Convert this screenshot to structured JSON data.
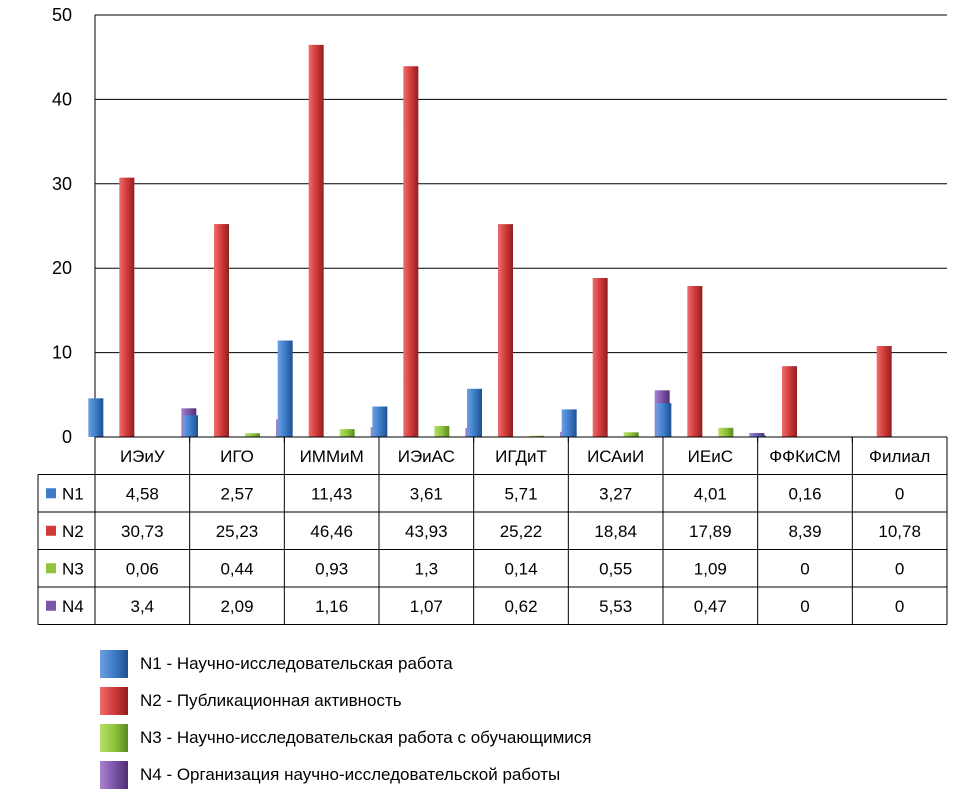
{
  "chart_data": {
    "type": "bar",
    "categories": [
      "ИЭиУ",
      "ИГО",
      "ИММиМ",
      "ИЭиАС",
      "ИГДиТ",
      "ИСАиИ",
      "ИЕиС",
      "ФФКиСМ",
      "Филиал"
    ],
    "series": [
      {
        "name": "N1",
        "color": "#3d7cc9",
        "values": [
          4.58,
          2.57,
          11.43,
          3.61,
          5.71,
          3.27,
          4.01,
          0.16,
          0
        ],
        "labels": [
          "4,58",
          "2,57",
          "11,43",
          "3,61",
          "5,71",
          "3,27",
          "4,01",
          "0,16",
          "0"
        ]
      },
      {
        "name": "N2",
        "color": "#d23a3a",
        "values": [
          30.73,
          25.23,
          46.46,
          43.93,
          25.22,
          18.84,
          17.89,
          8.39,
          10.78
        ],
        "labels": [
          "30,73",
          "25,23",
          "46,46",
          "43,93",
          "25,22",
          "18,84",
          "17,89",
          "8,39",
          "10,78"
        ]
      },
      {
        "name": "N3",
        "color": "#8fc43c",
        "values": [
          0.06,
          0.44,
          0.93,
          1.3,
          0.14,
          0.55,
          1.09,
          0,
          0
        ],
        "labels": [
          "0,06",
          "0,44",
          "0,93",
          "1,3",
          "0,14",
          "0,55",
          "1,09",
          "0",
          "0"
        ]
      },
      {
        "name": "N4",
        "color": "#7d55a8",
        "values": [
          3.4,
          2.09,
          1.16,
          1.07,
          0.62,
          5.53,
          0.47,
          0,
          0
        ],
        "labels": [
          "3,4",
          "2,09",
          "1,16",
          "1,07",
          "0,62",
          "5,53",
          "0,47",
          "0",
          "0"
        ]
      }
    ],
    "yticks": [
      "0",
      "10",
      "20",
      "30",
      "40",
      "50"
    ],
    "ylim": [
      0,
      50
    ],
    "grid": true,
    "legend": [
      "N1 - Научно-исследовательская работа",
      "N2 - Публикационная активность",
      "N3 - Научно-исследовательская работа с обучающимися",
      "N4 - Организация научно-исследовательской работы"
    ],
    "legend_position": "bottom",
    "data_table": true
  }
}
